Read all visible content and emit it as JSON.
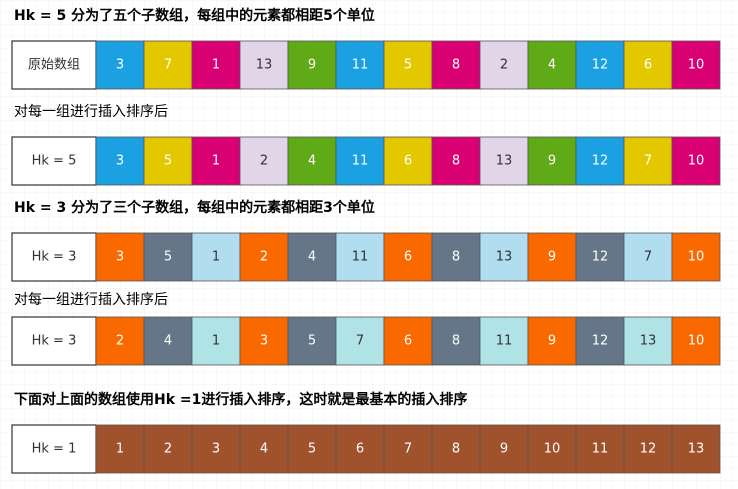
{
  "steps": [
    {
      "caption": "Hk = 5 分为了五个子数组，每组中的元素都相距5个单位",
      "row": {
        "label": "原始数组",
        "cells": [
          3,
          7,
          1,
          13,
          9,
          11,
          5,
          8,
          2,
          4,
          12,
          6,
          10
        ]
      }
    },
    {
      "caption": "对每一组进行插入排序后",
      "row": {
        "label": "Hk = 5",
        "cells": [
          3,
          5,
          1,
          2,
          4,
          11,
          6,
          8,
          13,
          9,
          12,
          7,
          10
        ]
      }
    },
    {
      "caption": "Hk = 3 分为了三个子数组，每组中的元素都相距3个单位",
      "row": {
        "label": "Hk = 3",
        "cells": [
          3,
          5,
          1,
          2,
          4,
          11,
          6,
          8,
          13,
          9,
          12,
          7,
          10
        ]
      }
    },
    {
      "caption": "对每一组进行插入排序后",
      "row": {
        "label": "Hk = 3",
        "cells": [
          2,
          4,
          1,
          3,
          5,
          7,
          6,
          8,
          11,
          9,
          12,
          13,
          10
        ]
      }
    },
    {
      "caption": "下面对上面的数组使用Hk =1进行插入排序，这时就是最基本的插入排序",
      "row": {
        "label": "Hk = 1",
        "cells": [
          1,
          2,
          3,
          4,
          5,
          6,
          7,
          8,
          9,
          10,
          11,
          12,
          13
        ]
      }
    }
  ]
}
